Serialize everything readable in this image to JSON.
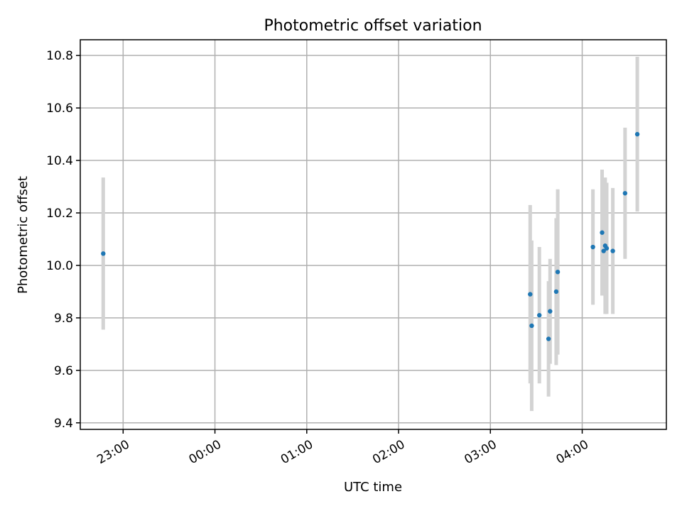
{
  "chart_data": {
    "type": "scatter",
    "title": "Photometric offset variation",
    "xlabel": "UTC time",
    "ylabel": "Photometric offset",
    "x_ticks": [
      "23:00",
      "00:00",
      "01:00",
      "02:00",
      "03:00",
      "04:00"
    ],
    "y_ticks": [
      "9.4",
      "9.6",
      "9.8",
      "10.0",
      "10.2",
      "10.4",
      "10.6",
      "10.8"
    ],
    "xlim_utc": [
      "22:32",
      "04:55"
    ],
    "ylim": [
      9.375,
      10.86
    ],
    "grid": true,
    "colors": {
      "point": "#1f77b4",
      "errorbar": "#d3d3d3",
      "grid": "#b0b0b0"
    },
    "points": [
      {
        "time": "22:47",
        "y": 10.045,
        "err": 0.29
      },
      {
        "time": "03:26",
        "y": 9.89,
        "err": 0.34
      },
      {
        "time": "03:27",
        "y": 9.77,
        "err": 0.325
      },
      {
        "time": "03:32",
        "y": 9.81,
        "err": 0.26
      },
      {
        "time": "03:38",
        "y": 9.72,
        "err": 0.22
      },
      {
        "time": "03:39",
        "y": 9.825,
        "err": 0.2
      },
      {
        "time": "03:43",
        "y": 9.9,
        "err": 0.28
      },
      {
        "time": "03:44",
        "y": 9.975,
        "err": 0.315
      },
      {
        "time": "04:07",
        "y": 10.07,
        "err": 0.22
      },
      {
        "time": "04:13",
        "y": 10.125,
        "err": 0.24
      },
      {
        "time": "04:14",
        "y": 10.055,
        "err": 0.16
      },
      {
        "time": "04:15",
        "y": 10.075,
        "err": 0.26
      },
      {
        "time": "04:16",
        "y": 10.065,
        "err": 0.25
      },
      {
        "time": "04:20",
        "y": 10.055,
        "err": 0.24
      },
      {
        "time": "04:28",
        "y": 10.275,
        "err": 0.25
      },
      {
        "time": "04:36",
        "y": 10.5,
        "err": 0.295
      }
    ]
  }
}
